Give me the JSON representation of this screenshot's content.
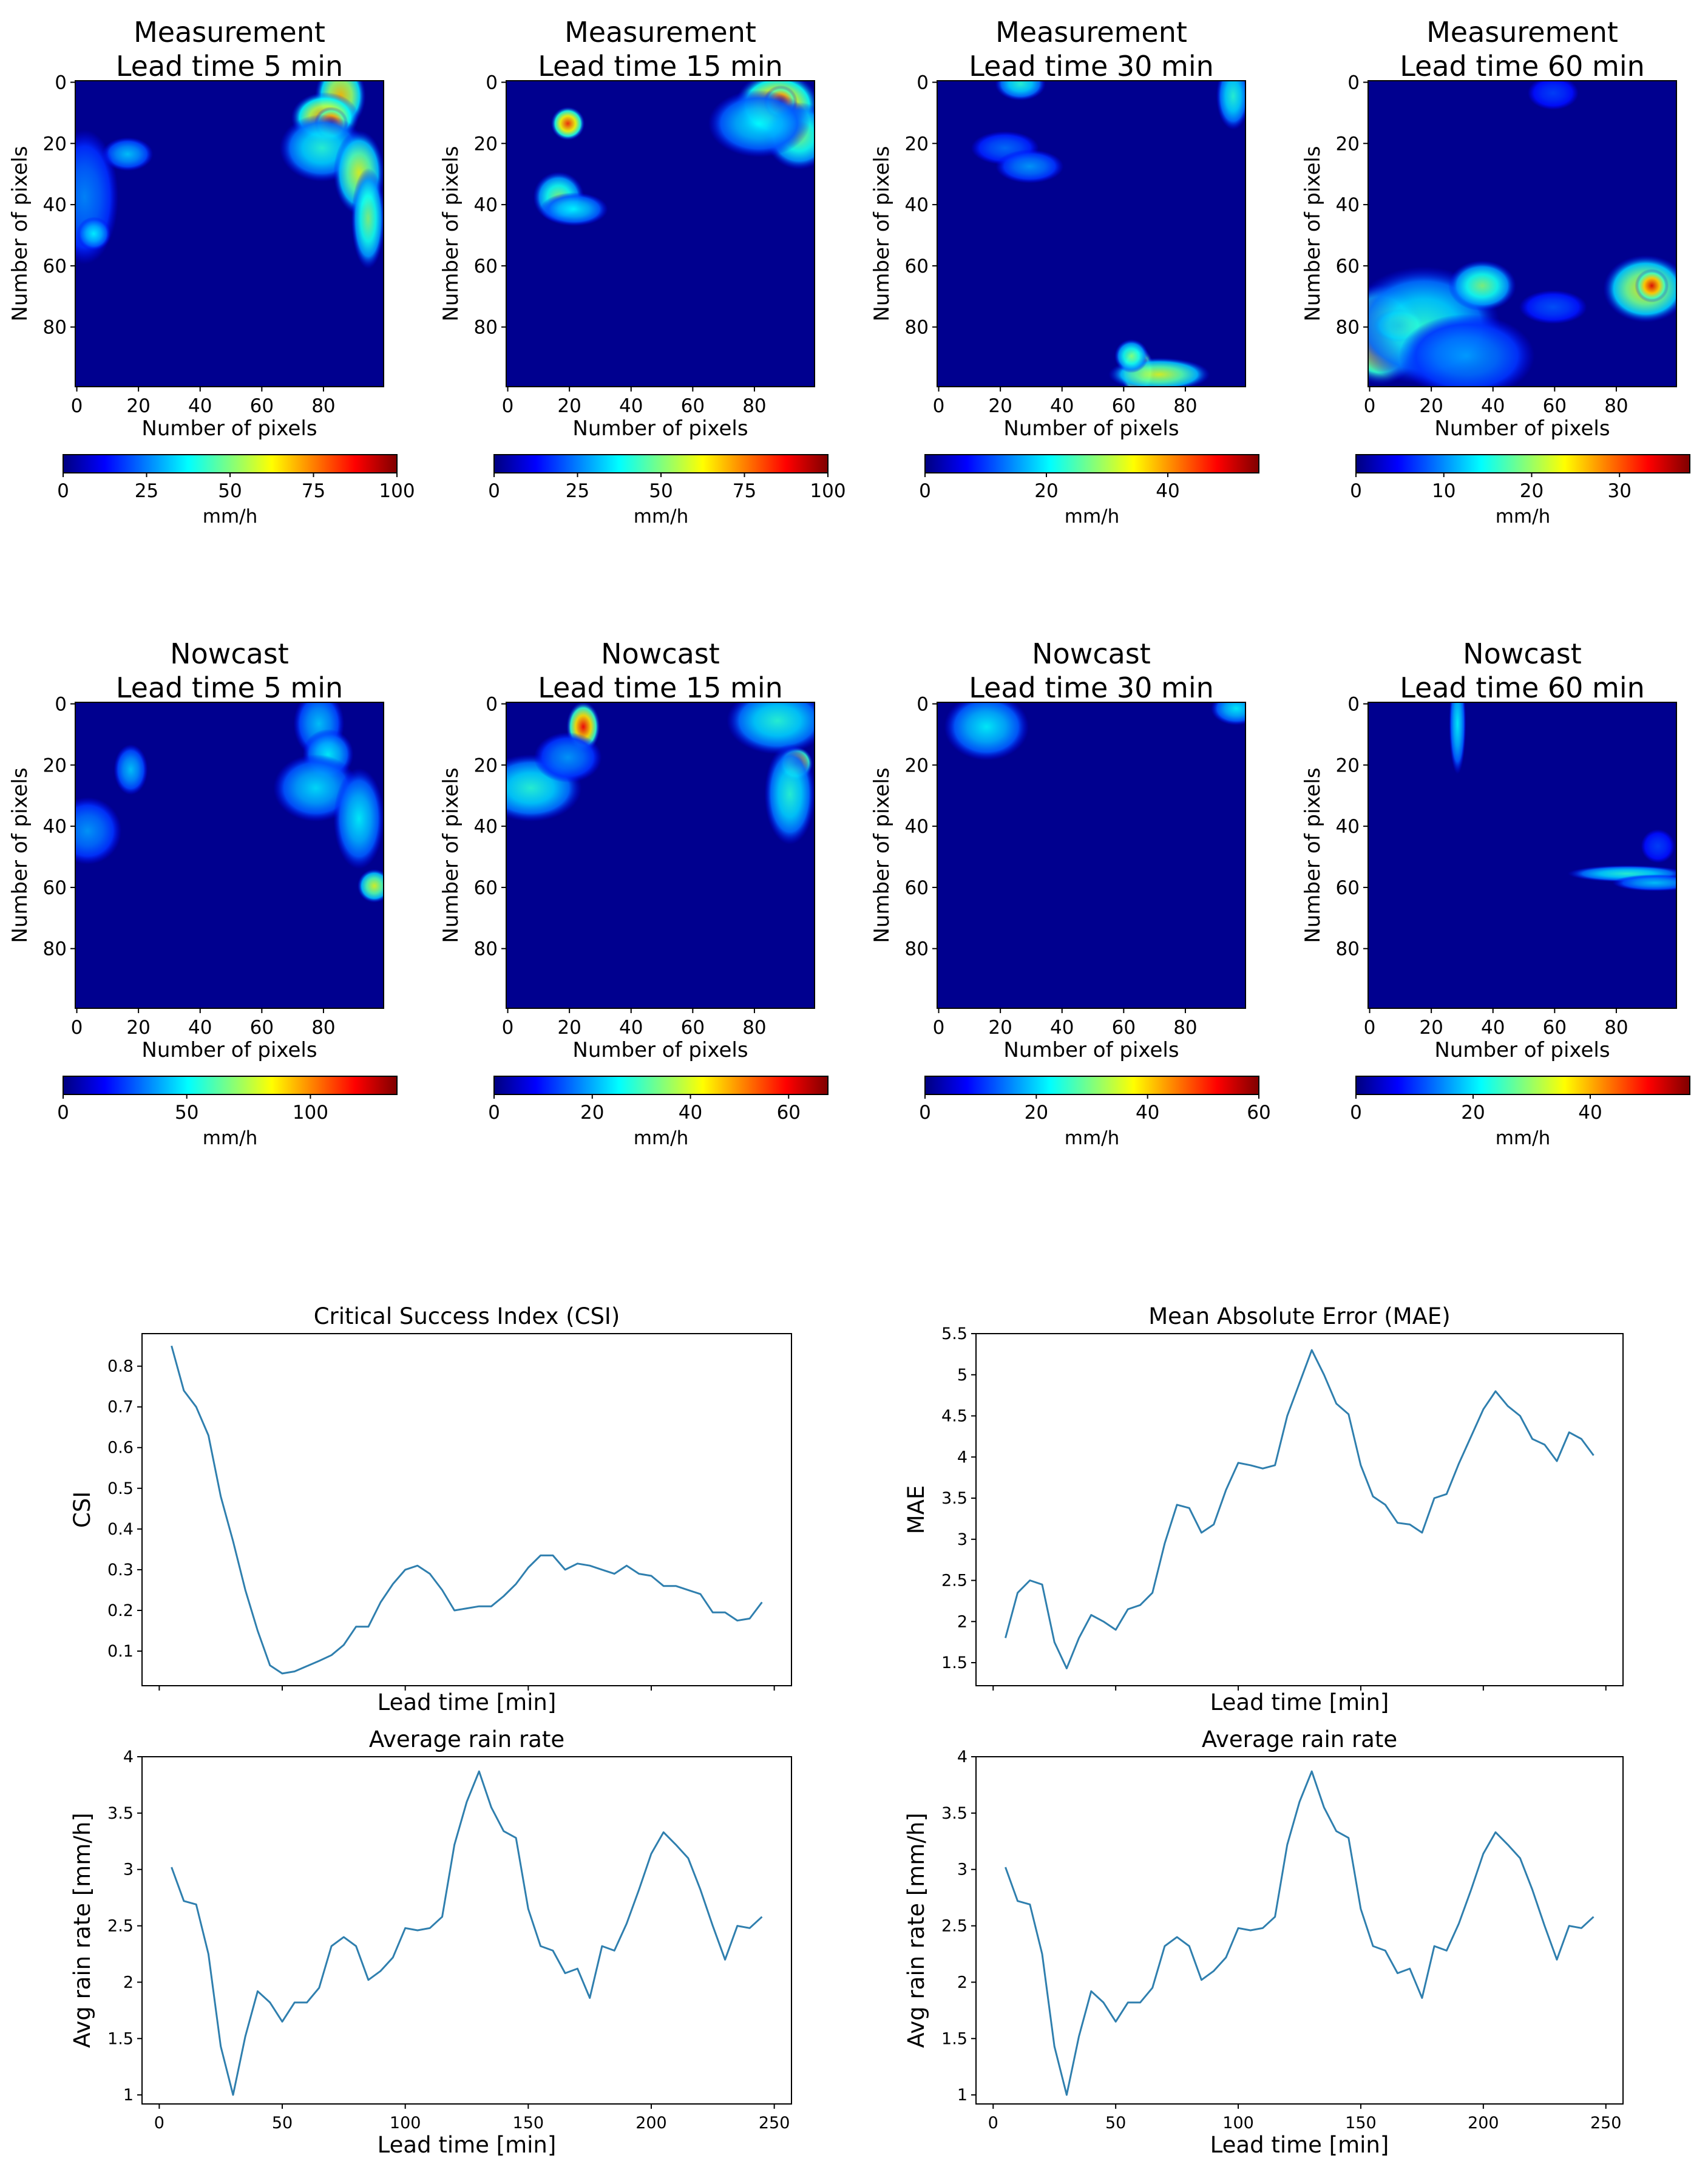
{
  "colors": {
    "field_background": "#00008f",
    "line": "#2f7fae",
    "colormap": [
      "#00007f",
      "#0000ff",
      "#007fff",
      "#00ffff",
      "#7fff7f",
      "#ffff00",
      "#ff7f00",
      "#ff0000",
      "#7f0000"
    ]
  },
  "chart_data": [
    {
      "type": "heatmap",
      "id": "meas-5",
      "title_line1": "Measurement",
      "title_line2": "Lead time 5 min",
      "xlabel": "Number of pixels",
      "ylabel": "Number of pixels",
      "x_ticks": [
        "0",
        "20",
        "40",
        "60",
        "80"
      ],
      "y_ticks": [
        "0",
        "20",
        "40",
        "60",
        "80"
      ],
      "colorbar_label": "mm/h",
      "colorbar_range": [
        0,
        100
      ],
      "colorbar_ticks": [
        "0",
        "25",
        "50",
        "75",
        "100"
      ],
      "blobs": [
        {
          "x": 86,
          "y": 5,
          "sx": 3,
          "sy": 4,
          "v": 0.65
        },
        {
          "x": 81,
          "y": 12,
          "sx": 4,
          "sy": 3,
          "v": 0.7
        },
        {
          "x": 83,
          "y": 14,
          "sx": 2,
          "sy": 2,
          "v": 0.95
        },
        {
          "x": 80,
          "y": 22,
          "sx": 5,
          "sy": 4,
          "v": 0.35
        },
        {
          "x": 92,
          "y": 30,
          "sx": 3,
          "sy": 5,
          "v": 0.55
        },
        {
          "x": 95,
          "y": 45,
          "sx": 2,
          "sy": 6,
          "v": 0.45
        },
        {
          "x": 17,
          "y": 24,
          "sx": 3,
          "sy": 2,
          "v": 0.25
        },
        {
          "x": 3,
          "y": 38,
          "sx": 4,
          "sy": 8,
          "v": 0.18
        },
        {
          "x": 6,
          "y": 50,
          "sx": 2,
          "sy": 2,
          "v": 0.3
        }
      ]
    },
    {
      "type": "heatmap",
      "id": "meas-15",
      "title_line1": "Measurement",
      "title_line2": "Lead time 15 min",
      "xlabel": "Number of pixels",
      "ylabel": "Number of pixels",
      "x_ticks": [
        "0",
        "20",
        "40",
        "60",
        "80"
      ],
      "y_ticks": [
        "0",
        "20",
        "40",
        "60",
        "80"
      ],
      "colorbar_label": "mm/h",
      "colorbar_range": [
        0,
        100
      ],
      "colorbar_ticks": [
        "0",
        "25",
        "50",
        "75",
        "100"
      ],
      "blobs": [
        {
          "x": 88,
          "y": 8,
          "sx": 5,
          "sy": 4,
          "v": 0.75
        },
        {
          "x": 89,
          "y": 7,
          "sx": 2,
          "sy": 2,
          "v": 0.95
        },
        {
          "x": 95,
          "y": 18,
          "sx": 4,
          "sy": 4,
          "v": 0.45
        },
        {
          "x": 82,
          "y": 14,
          "sx": 6,
          "sy": 4,
          "v": 0.3
        },
        {
          "x": 20,
          "y": 14,
          "sx": 2,
          "sy": 2,
          "v": 0.8
        },
        {
          "x": 17,
          "y": 38,
          "sx": 3,
          "sy": 3,
          "v": 0.45
        },
        {
          "x": 22,
          "y": 42,
          "sx": 4,
          "sy": 2,
          "v": 0.3
        }
      ]
    },
    {
      "type": "heatmap",
      "id": "meas-30",
      "title_line1": "Measurement",
      "title_line2": "Lead time 30 min",
      "xlabel": "Number of pixels",
      "ylabel": "Number of pixels",
      "x_ticks": [
        "0",
        "20",
        "40",
        "60",
        "80"
      ],
      "y_ticks": [
        "0",
        "20",
        "40",
        "60",
        "80"
      ],
      "colorbar_label": "mm/h",
      "colorbar_range": [
        0,
        55
      ],
      "colorbar_ticks": [
        "0",
        "20",
        "40"
      ],
      "blobs": [
        {
          "x": 27,
          "y": 1,
          "sx": 3,
          "sy": 2,
          "v": 0.35
        },
        {
          "x": 96,
          "y": 5,
          "sx": 2,
          "sy": 4,
          "v": 0.35
        },
        {
          "x": 22,
          "y": 22,
          "sx": 4,
          "sy": 2,
          "v": 0.15
        },
        {
          "x": 30,
          "y": 28,
          "sx": 4,
          "sy": 2,
          "v": 0.2
        },
        {
          "x": 65,
          "y": 95,
          "sx": 2,
          "sy": 3,
          "v": 0.95
        },
        {
          "x": 72,
          "y": 96,
          "sx": 6,
          "sy": 2,
          "v": 0.55
        },
        {
          "x": 63,
          "y": 90,
          "sx": 2,
          "sy": 2,
          "v": 0.45
        }
      ]
    },
    {
      "type": "heatmap",
      "id": "meas-60",
      "title_line1": "Measurement",
      "title_line2": "Lead time 60 min",
      "xlabel": "Number of pixels",
      "ylabel": "Number of pixels",
      "x_ticks": [
        "0",
        "20",
        "40",
        "60",
        "80"
      ],
      "y_ticks": [
        "0",
        "20",
        "40",
        "60",
        "80"
      ],
      "colorbar_label": "mm/h",
      "colorbar_range": [
        0,
        38
      ],
      "colorbar_ticks": [
        "0",
        "10",
        "20",
        "30"
      ],
      "blobs": [
        {
          "x": 4,
          "y": 83,
          "sx": 5,
          "sy": 6,
          "v": 0.85
        },
        {
          "x": 10,
          "y": 80,
          "sx": 3,
          "sy": 2,
          "v": 0.9
        },
        {
          "x": 18,
          "y": 80,
          "sx": 9,
          "sy": 7,
          "v": 0.35
        },
        {
          "x": 32,
          "y": 90,
          "sx": 8,
          "sy": 5,
          "v": 0.2
        },
        {
          "x": 37,
          "y": 67,
          "sx": 4,
          "sy": 3,
          "v": 0.45
        },
        {
          "x": 90,
          "y": 68,
          "sx": 5,
          "sy": 4,
          "v": 0.6
        },
        {
          "x": 92,
          "y": 67,
          "sx": 2,
          "sy": 2,
          "v": 0.9
        },
        {
          "x": 60,
          "y": 74,
          "sx": 4,
          "sy": 2,
          "v": 0.12
        },
        {
          "x": 60,
          "y": 4,
          "sx": 3,
          "sy": 2,
          "v": 0.1
        }
      ]
    },
    {
      "type": "heatmap",
      "id": "now-5",
      "title_line1": "Nowcast",
      "title_line2": "Lead time 5 min",
      "xlabel": "Number of pixels",
      "ylabel": "Number of pixels",
      "x_ticks": [
        "0",
        "20",
        "40",
        "60",
        "80"
      ],
      "y_ticks": [
        "0",
        "20",
        "40",
        "60",
        "80"
      ],
      "colorbar_label": "mm/h",
      "colorbar_range": [
        0,
        135
      ],
      "colorbar_ticks": [
        "0",
        "50",
        "100"
      ],
      "blobs": [
        {
          "x": 79,
          "y": 7,
          "sx": 3,
          "sy": 4,
          "v": 0.25
        },
        {
          "x": 82,
          "y": 17,
          "sx": 3,
          "sy": 3,
          "v": 0.3
        },
        {
          "x": 78,
          "y": 28,
          "sx": 5,
          "sy": 4,
          "v": 0.28
        },
        {
          "x": 92,
          "y": 38,
          "sx": 3,
          "sy": 6,
          "v": 0.3
        },
        {
          "x": 97,
          "y": 60,
          "sx": 2,
          "sy": 2,
          "v": 0.55
        },
        {
          "x": 18,
          "y": 22,
          "sx": 2,
          "sy": 3,
          "v": 0.25
        },
        {
          "x": 4,
          "y": 42,
          "sx": 4,
          "sy": 4,
          "v": 0.2
        }
      ]
    },
    {
      "type": "heatmap",
      "id": "now-15",
      "title_line1": "Nowcast",
      "title_line2": "Lead time 15 min",
      "xlabel": "Number of pixels",
      "ylabel": "Number of pixels",
      "x_ticks": [
        "0",
        "20",
        "40",
        "60",
        "80"
      ],
      "y_ticks": [
        "0",
        "20",
        "40",
        "60",
        "80"
      ],
      "colorbar_label": "mm/h",
      "colorbar_range": [
        0,
        68
      ],
      "colorbar_ticks": [
        "0",
        "20",
        "40",
        "60"
      ],
      "blobs": [
        {
          "x": 25,
          "y": 8,
          "sx": 2,
          "sy": 3,
          "v": 0.85
        },
        {
          "x": 94,
          "y": 20,
          "sx": 2,
          "sy": 2,
          "v": 0.85
        },
        {
          "x": 88,
          "y": 6,
          "sx": 6,
          "sy": 4,
          "v": 0.35
        },
        {
          "x": 92,
          "y": 30,
          "sx": 3,
          "sy": 6,
          "v": 0.35
        },
        {
          "x": 8,
          "y": 28,
          "sx": 6,
          "sy": 4,
          "v": 0.35
        },
        {
          "x": 20,
          "y": 18,
          "sx": 4,
          "sy": 3,
          "v": 0.2
        }
      ]
    },
    {
      "type": "heatmap",
      "id": "now-30",
      "title_line1": "Nowcast",
      "title_line2": "Lead time 30 min",
      "xlabel": "Number of pixels",
      "ylabel": "Number of pixels",
      "x_ticks": [
        "0",
        "20",
        "40",
        "60",
        "80"
      ],
      "y_ticks": [
        "0",
        "20",
        "40",
        "60",
        "80"
      ],
      "colorbar_label": "mm/h",
      "colorbar_range": [
        0,
        60
      ],
      "colorbar_ticks": [
        "0",
        "20",
        "40",
        "60"
      ],
      "blobs": [
        {
          "x": 16,
          "y": 8,
          "sx": 5,
          "sy": 4,
          "v": 0.3
        },
        {
          "x": 97,
          "y": 2,
          "sx": 3,
          "sy": 2,
          "v": 0.3
        }
      ]
    },
    {
      "type": "heatmap",
      "id": "now-60",
      "title_line1": "Nowcast",
      "title_line2": "Lead time 60 min",
      "xlabel": "Number of pixels",
      "ylabel": "Number of pixels",
      "x_ticks": [
        "0",
        "20",
        "40",
        "60",
        "80"
      ],
      "y_ticks": [
        "0",
        "20",
        "40",
        "60",
        "80"
      ],
      "colorbar_label": "mm/h",
      "colorbar_range": [
        0,
        57
      ],
      "colorbar_ticks": [
        "0",
        "20",
        "40"
      ],
      "blobs": [
        {
          "x": 29,
          "y": 7,
          "sx": 1,
          "sy": 6,
          "v": 0.3
        },
        {
          "x": 84,
          "y": 56,
          "sx": 7,
          "sy": 1,
          "v": 0.35
        },
        {
          "x": 93,
          "y": 59,
          "sx": 5,
          "sy": 1,
          "v": 0.25
        },
        {
          "x": 94,
          "y": 47,
          "sx": 2,
          "sy": 2,
          "v": 0.1
        }
      ]
    },
    {
      "type": "line",
      "id": "csi",
      "title": "Critical Success Index (CSI)",
      "xlabel": "Lead time [min]",
      "ylabel": "CSI",
      "xlim": [
        -7,
        257
      ],
      "ylim": [
        0.015,
        0.88
      ],
      "y_ticks": [
        0.1,
        0.2,
        0.3,
        0.4,
        0.5,
        0.6,
        0.7,
        0.8
      ],
      "show_x_tick_labels": false,
      "x": [
        5,
        10,
        15,
        20,
        25,
        30,
        35,
        40,
        45,
        50,
        55,
        60,
        65,
        70,
        75,
        80,
        85,
        90,
        95,
        100,
        105,
        110,
        115,
        120,
        125,
        130,
        135,
        140,
        145,
        150,
        155,
        160,
        165,
        170,
        175,
        180,
        185,
        190,
        195,
        200,
        205,
        210,
        215,
        220,
        225,
        230,
        235,
        240,
        245
      ],
      "y": [
        0.85,
        0.74,
        0.7,
        0.63,
        0.48,
        0.37,
        0.25,
        0.15,
        0.065,
        0.045,
        0.05,
        0.063,
        0.076,
        0.09,
        0.115,
        0.16,
        0.16,
        0.22,
        0.265,
        0.3,
        0.31,
        0.29,
        0.25,
        0.2,
        0.205,
        0.21,
        0.21,
        0.235,
        0.265,
        0.305,
        0.335,
        0.335,
        0.3,
        0.315,
        0.31,
        0.3,
        0.29,
        0.31,
        0.29,
        0.285,
        0.26,
        0.26,
        0.25,
        0.24,
        0.195,
        0.195,
        0.175,
        0.18,
        0.22
      ]
    },
    {
      "type": "line",
      "id": "mae",
      "title": "Mean Absolute Error (MAE)",
      "xlabel": "Lead time [min]",
      "ylabel": "MAE",
      "xlim": [
        -7,
        257
      ],
      "ylim": [
        1.22,
        5.5
      ],
      "y_ticks": [
        1.5,
        2.0,
        2.5,
        3.0,
        3.5,
        4.0,
        4.5,
        5.0,
        5.5
      ],
      "show_x_tick_labels": false,
      "x": [
        5,
        10,
        15,
        20,
        25,
        30,
        35,
        40,
        45,
        50,
        55,
        60,
        65,
        70,
        75,
        80,
        85,
        90,
        95,
        100,
        105,
        110,
        115,
        120,
        125,
        130,
        135,
        140,
        145,
        150,
        155,
        160,
        165,
        170,
        175,
        180,
        185,
        190,
        195,
        200,
        205,
        210,
        215,
        220,
        225,
        230,
        235,
        240,
        245
      ],
      "y": [
        1.8,
        2.35,
        2.5,
        2.45,
        1.75,
        1.43,
        1.8,
        2.08,
        2.0,
        1.9,
        2.15,
        2.2,
        2.35,
        2.95,
        3.42,
        3.38,
        3.08,
        3.18,
        3.6,
        3.93,
        3.9,
        3.86,
        3.9,
        4.5,
        4.9,
        5.3,
        5.0,
        4.65,
        4.52,
        3.9,
        3.52,
        3.42,
        3.2,
        3.18,
        3.08,
        3.5,
        3.55,
        3.92,
        4.25,
        4.58,
        4.8,
        4.62,
        4.5,
        4.22,
        4.15,
        3.95,
        4.3,
        4.22,
        4.02
      ]
    },
    {
      "type": "line",
      "id": "avg-left",
      "title": "Average rain rate",
      "xlabel": "Lead time [min]",
      "ylabel": "Avg rain rate [mm/h]",
      "xlim": [
        -7,
        257
      ],
      "ylim": [
        0.92,
        4.0
      ],
      "y_ticks": [
        1.0,
        1.5,
        2.0,
        2.5,
        3.0,
        3.5,
        4.0
      ],
      "x_ticks": [
        0,
        50,
        100,
        150,
        200,
        250
      ],
      "show_x_tick_labels": true,
      "x": [
        5,
        10,
        15,
        20,
        25,
        30,
        35,
        40,
        45,
        50,
        55,
        60,
        65,
        70,
        75,
        80,
        85,
        90,
        95,
        100,
        105,
        110,
        115,
        120,
        125,
        130,
        135,
        140,
        145,
        150,
        155,
        160,
        165,
        170,
        175,
        180,
        185,
        190,
        195,
        200,
        205,
        210,
        215,
        220,
        225,
        230,
        235,
        240,
        245
      ],
      "y": [
        3.02,
        2.72,
        2.69,
        2.25,
        1.43,
        1.0,
        1.52,
        1.92,
        1.82,
        1.65,
        1.82,
        1.82,
        1.95,
        2.32,
        2.4,
        2.32,
        2.02,
        2.1,
        2.22,
        2.48,
        2.46,
        2.48,
        2.58,
        3.22,
        3.6,
        3.87,
        3.55,
        3.34,
        3.28,
        2.65,
        2.32,
        2.28,
        2.08,
        2.12,
        1.86,
        2.32,
        2.28,
        2.52,
        2.82,
        3.14,
        3.33,
        3.22,
        3.1,
        2.82,
        2.5,
        2.2,
        2.5,
        2.48,
        2.58
      ]
    },
    {
      "type": "line",
      "id": "avg-right",
      "title": "Average rain rate",
      "xlabel": "Lead time [min]",
      "ylabel": "Avg rain rate [mm/h]",
      "xlim": [
        -7,
        257
      ],
      "ylim": [
        0.92,
        4.0
      ],
      "y_ticks": [
        1.0,
        1.5,
        2.0,
        2.5,
        3.0,
        3.5,
        4.0
      ],
      "x_ticks": [
        0,
        50,
        100,
        150,
        200,
        250
      ],
      "show_x_tick_labels": true,
      "x": [
        5,
        10,
        15,
        20,
        25,
        30,
        35,
        40,
        45,
        50,
        55,
        60,
        65,
        70,
        75,
        80,
        85,
        90,
        95,
        100,
        105,
        110,
        115,
        120,
        125,
        130,
        135,
        140,
        145,
        150,
        155,
        160,
        165,
        170,
        175,
        180,
        185,
        190,
        195,
        200,
        205,
        210,
        215,
        220,
        225,
        230,
        235,
        240,
        245
      ],
      "y": [
        3.02,
        2.72,
        2.69,
        2.25,
        1.43,
        1.0,
        1.52,
        1.92,
        1.82,
        1.65,
        1.82,
        1.82,
        1.95,
        2.32,
        2.4,
        2.32,
        2.02,
        2.1,
        2.22,
        2.48,
        2.46,
        2.48,
        2.58,
        3.22,
        3.6,
        3.87,
        3.55,
        3.34,
        3.28,
        2.65,
        2.32,
        2.28,
        2.08,
        2.12,
        1.86,
        2.32,
        2.28,
        2.52,
        2.82,
        3.14,
        3.33,
        3.22,
        3.1,
        2.82,
        2.5,
        2.2,
        2.5,
        2.48,
        2.58
      ]
    }
  ]
}
